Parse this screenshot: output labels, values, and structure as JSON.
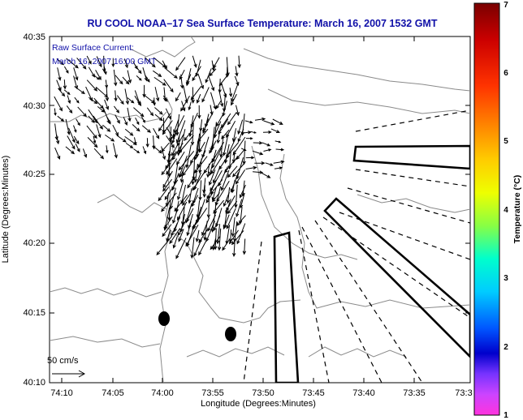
{
  "title": "RU COOL  NOAA–17  Sea Surface Temperature:  March 16, 2007 1532 GMT",
  "legend": {
    "line1": "Raw Surface Current:",
    "line2": "March 16, 2007 16:00 GMT"
  },
  "scale_label": "50 cm/s",
  "x_axis": {
    "label": "Longitude (Degrees:Minutes)",
    "ticks": [
      "74:10",
      "74:05",
      "74:00",
      "73:55",
      "73:50",
      "73:45",
      "73:40",
      "73:35",
      "73:3"
    ]
  },
  "y_axis": {
    "label": "Latitude (Degrees:Minutes)",
    "ticks": [
      "40:35",
      "40:30",
      "40:25",
      "40:20",
      "40:15",
      "40:10"
    ]
  },
  "colorbar": {
    "label": "Temperature (°C)",
    "ticks": [
      "7",
      "6",
      "5",
      "4",
      "3",
      "2",
      "1"
    ]
  },
  "colors": {
    "title": "#1010a8",
    "land_outline": "#888888",
    "lines": "#000000"
  }
}
